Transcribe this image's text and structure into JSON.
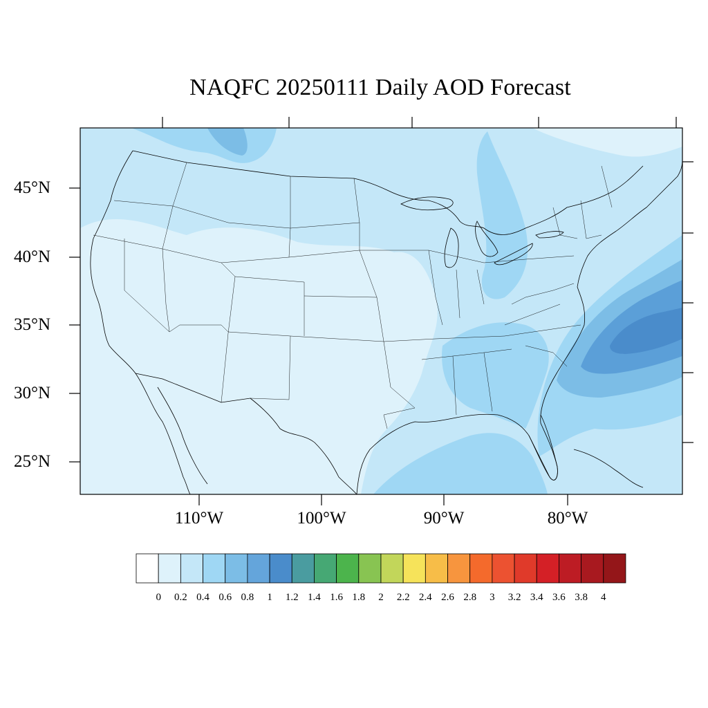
{
  "title": "NAQFC 20250111 Daily AOD Forecast",
  "map": {
    "projection": "lambert-conformal",
    "region": "CONUS",
    "field": "AOD",
    "lat_labels": [
      "45°N",
      "40°N",
      "35°N",
      "30°N",
      "25°N"
    ],
    "lon_labels": [
      "110°W",
      "100°W",
      "90°W",
      "80°W"
    ],
    "colors": {
      "very_light": "#def2fb",
      "light": "#c4e7f8",
      "medium": "#9fd7f4",
      "deep": "#7cbde6",
      "dark": "#5b9fd8",
      "darkest": "#4a8ccb",
      "outline": "#000000"
    }
  },
  "colorbar": {
    "colors": [
      "#ffffff",
      "#def2fb",
      "#c4e7f8",
      "#9fd7f4",
      "#7cbde6",
      "#64a5db",
      "#4a8ccb",
      "#4a9ca0",
      "#46a874",
      "#4cb44c",
      "#88c452",
      "#c2d65a",
      "#f6e35a",
      "#f7bd48",
      "#f7953e",
      "#f46a2c",
      "#ec5231",
      "#e03a2a",
      "#d42026",
      "#bd1c24",
      "#a8191f",
      "#941619"
    ],
    "tick_labels": [
      "0",
      "0.2",
      "0.4",
      "0.6",
      "0.8",
      "1",
      "1.2",
      "1.4",
      "1.6",
      "1.8",
      "2",
      "2.2",
      "2.4",
      "2.6",
      "2.8",
      "3",
      "3.2",
      "3.4",
      "3.6",
      "3.8",
      "4"
    ]
  }
}
